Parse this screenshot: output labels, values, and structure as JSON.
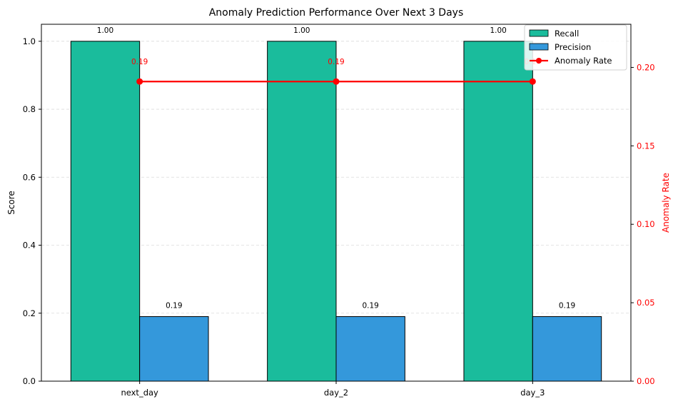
{
  "chart_data": {
    "type": "bar",
    "title": "Anomaly Prediction Performance Over Next 3 Days",
    "categories": [
      "next_day",
      "day_2",
      "day_3"
    ],
    "ylabel": "Score",
    "ylim": [
      0,
      1.05
    ],
    "yticks": [
      0.0,
      0.2,
      0.4,
      0.6,
      0.8,
      1.0
    ],
    "y_tick_labels": [
      "0.0",
      "0.2",
      "0.4",
      "0.6",
      "0.8",
      "1.0"
    ],
    "series": [
      {
        "name": "Recall",
        "color": "#1abc9c",
        "values": [
          1.0,
          1.0,
          1.0
        ],
        "value_labels": [
          "1.00",
          "1.00",
          "1.00"
        ]
      },
      {
        "name": "Precision",
        "color": "#3498db",
        "values": [
          0.19,
          0.19,
          0.19
        ],
        "value_labels": [
          "0.19",
          "0.19",
          "0.19"
        ]
      }
    ],
    "secondary_axis": {
      "ylabel": "Anomaly Rate",
      "color": "#ff0000",
      "ylim": [
        0,
        0.2275
      ],
      "yticks": [
        0.0,
        0.05,
        0.1,
        0.15,
        0.2
      ],
      "y_tick_labels": [
        "0.00",
        "0.05",
        "0.10",
        "0.15",
        "0.20"
      ]
    },
    "line_series": {
      "name": "Anomaly Rate",
      "type": "line",
      "axis": "secondary",
      "color": "#ff0000",
      "values": [
        0.191,
        0.191,
        0.191
      ],
      "value_labels": [
        "0.19",
        "0.19",
        "0.19"
      ]
    },
    "grid": true,
    "legend_position": "top-right"
  }
}
